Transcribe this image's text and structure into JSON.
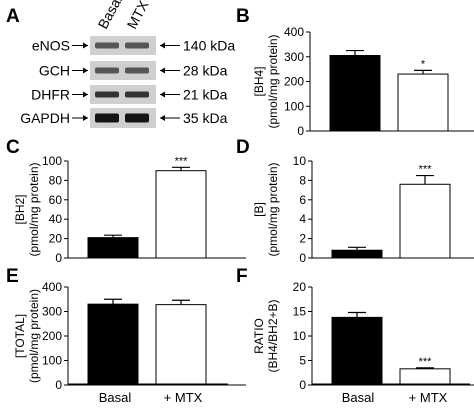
{
  "panels": {
    "A": {
      "letter": "A",
      "lanes": [
        "Basal",
        "MTX"
      ],
      "bands": [
        {
          "name": "eNOS",
          "size": "140 kDa"
        },
        {
          "name": "GCH",
          "size": "28 kDa"
        },
        {
          "name": "DHFR",
          "size": "21 kDa"
        },
        {
          "name": "GAPDH",
          "size": "35 kDa"
        }
      ]
    }
  },
  "shared_x": {
    "categories": [
      "Basal",
      "+ MTX"
    ]
  },
  "chart_data": [
    {
      "panel": "B",
      "type": "bar",
      "categories": [
        "Basal",
        "+ MTX"
      ],
      "values": [
        305,
        230
      ],
      "errors": [
        20,
        15
      ],
      "significance": [
        "",
        "*"
      ],
      "ylabel_lines": [
        "[BH4]",
        "(pmol/mg protein)"
      ],
      "ylim": [
        0,
        400
      ],
      "yticks": [
        0,
        100,
        200,
        300,
        400
      ],
      "fills": [
        "#000000",
        "#ffffff"
      ]
    },
    {
      "panel": "C",
      "type": "bar",
      "categories": [
        "Basal",
        "+ MTX"
      ],
      "values": [
        21,
        90
      ],
      "errors": [
        2.5,
        3.5
      ],
      "significance": [
        "",
        "***"
      ],
      "ylabel_lines": [
        "[BH2]",
        "(pmol/mg protein)"
      ],
      "ylim": [
        0,
        100
      ],
      "yticks": [
        0,
        20,
        40,
        60,
        80,
        100
      ],
      "fills": [
        "#000000",
        "#ffffff"
      ]
    },
    {
      "panel": "D",
      "type": "bar",
      "categories": [
        "Basal",
        "+ MTX"
      ],
      "values": [
        0.8,
        7.6
      ],
      "errors": [
        0.3,
        0.9
      ],
      "significance": [
        "",
        "***"
      ],
      "ylabel_lines": [
        "[B]",
        "(pmol/mg protein)"
      ],
      "ylim": [
        0,
        10
      ],
      "yticks": [
        0,
        2,
        4,
        6,
        8,
        10
      ],
      "fills": [
        "#000000",
        "#ffffff"
      ]
    },
    {
      "panel": "E",
      "type": "bar",
      "categories": [
        "Basal",
        "+ MTX"
      ],
      "values": [
        330,
        328
      ],
      "errors": [
        20,
        18
      ],
      "significance": [
        "",
        ""
      ],
      "ylabel_lines": [
        "[TOTAL]",
        "(pmol/mg protein)"
      ],
      "ylim": [
        0,
        400
      ],
      "yticks": [
        0,
        100,
        200,
        300,
        400
      ],
      "fills": [
        "#000000",
        "#ffffff"
      ]
    },
    {
      "panel": "F",
      "type": "bar",
      "categories": [
        "Basal",
        "+ MTX"
      ],
      "values": [
        13.8,
        3.3
      ],
      "errors": [
        1.0,
        0.2
      ],
      "significance": [
        "",
        "***"
      ],
      "ylabel_lines": [
        "RATIO",
        "(BH4/BH2+B)"
      ],
      "ylim": [
        0,
        20
      ],
      "yticks": [
        0,
        5,
        10,
        15,
        20
      ],
      "fills": [
        "#000000",
        "#ffffff"
      ]
    }
  ]
}
